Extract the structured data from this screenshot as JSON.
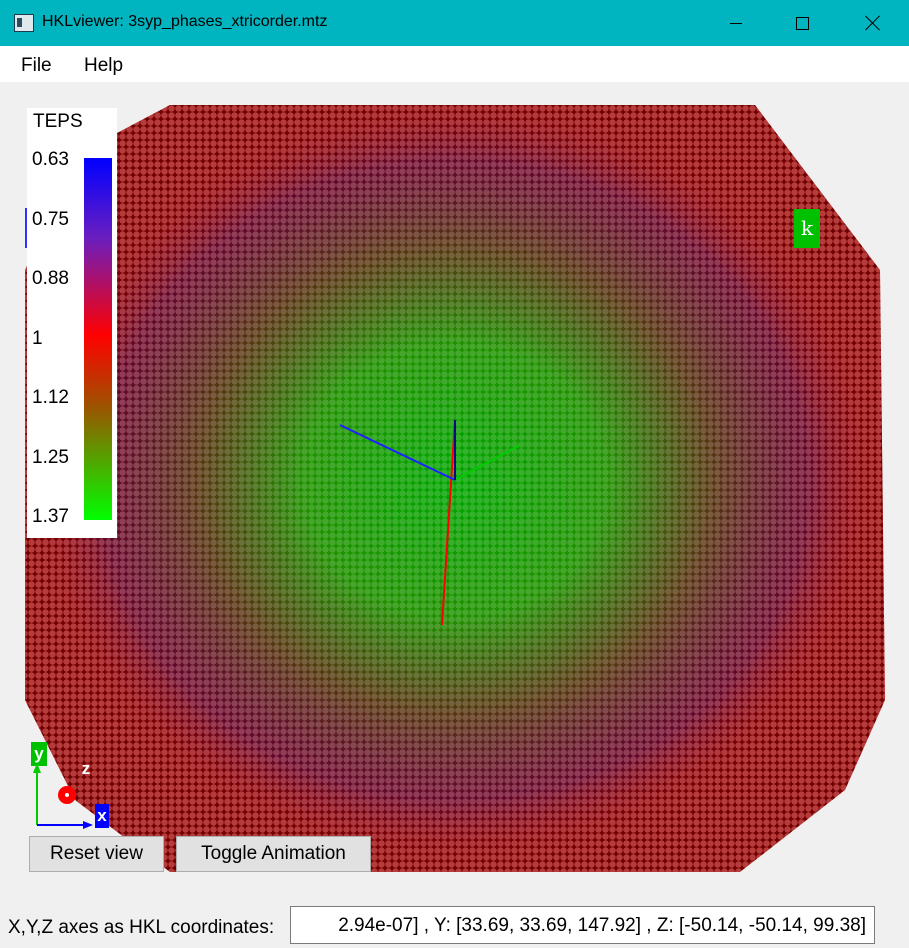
{
  "window": {
    "title": "HKLviewer: 3syp_phases_xtricorder.mtz"
  },
  "menu": {
    "items": [
      "File",
      "Help"
    ]
  },
  "legend": {
    "title": "TEPS",
    "ticks": [
      "0.63",
      "0.75",
      "0.88",
      "1",
      "1.12",
      "1.25",
      "1.37"
    ],
    "colors": {
      "low": "#0000ff",
      "mid": "#ff0000",
      "high": "#00ff00"
    }
  },
  "axes": {
    "y": "y",
    "z": "z",
    "x": "x",
    "k": "k",
    "colors": {
      "x": "#0000ff",
      "y": "#00c000",
      "z": "#ff0000"
    }
  },
  "buttons": {
    "reset": "Reset view",
    "toggle": "Toggle Animation"
  },
  "status": {
    "label": "X,Y,Z axes as HKL coordinates:",
    "value": "2.94e-07] , Y: [33.69, 33.69, 147.92] , Z: [-50.14, -50.14, 99.38]"
  }
}
